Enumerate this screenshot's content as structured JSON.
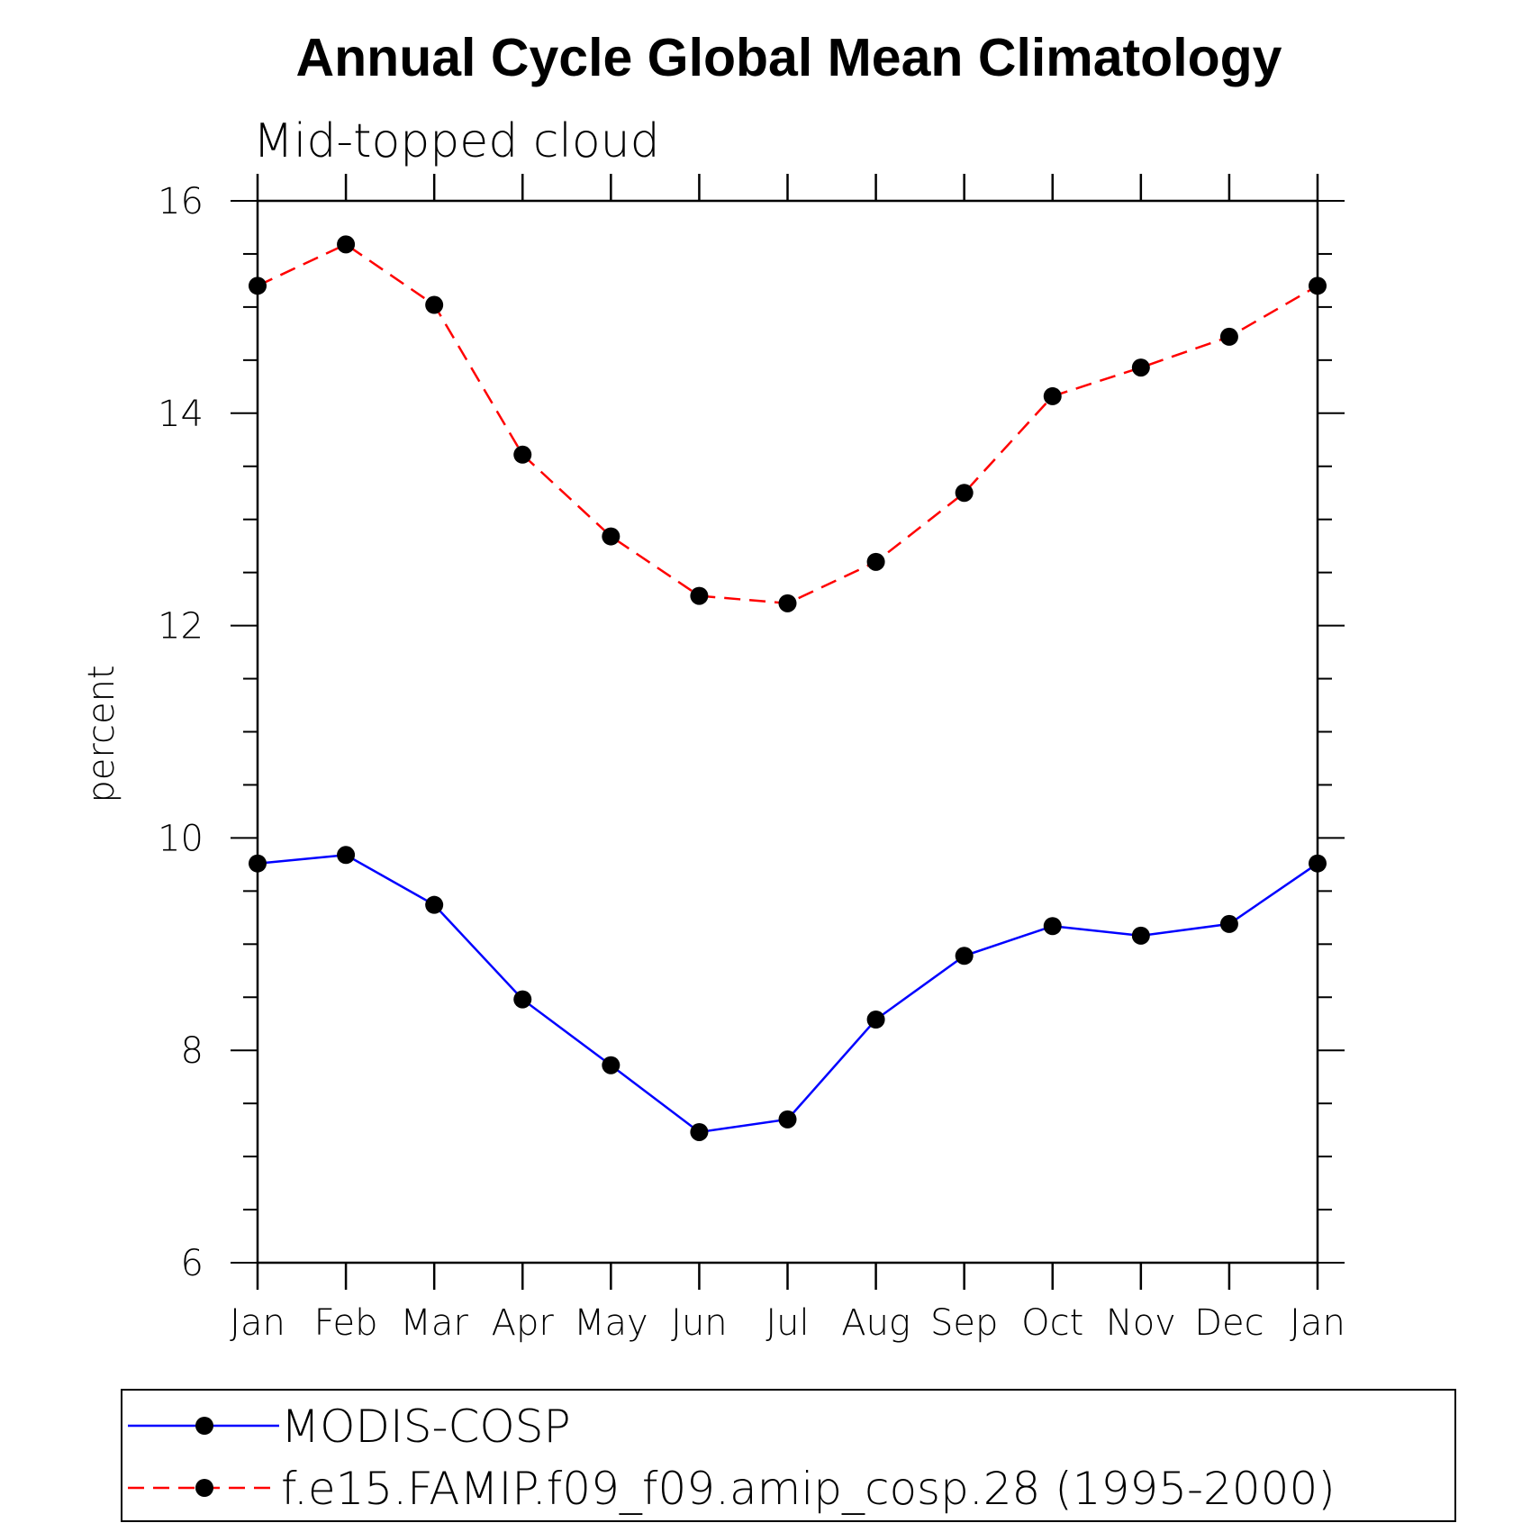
{
  "chart_data": {
    "type": "line",
    "title": "Annual Cycle Global Mean Climatology",
    "subtitle": "Mid-topped cloud",
    "ylabel": "percent",
    "xlabel": "",
    "categories": [
      "Jan",
      "Feb",
      "Mar",
      "Apr",
      "May",
      "Jun",
      "Jul",
      "Aug",
      "Sep",
      "Oct",
      "Nov",
      "Dec",
      "Jan"
    ],
    "ylim": [
      6,
      16
    ],
    "yticks": [
      "6",
      "8",
      "10",
      "12",
      "14",
      "16"
    ],
    "grid": false,
    "legend_position": "bottom",
    "series": [
      {
        "name": "MODIS-COSP",
        "color": "#0000ff",
        "line_style": "solid",
        "marker": "filled-circle",
        "values": [
          9.76,
          9.84,
          9.37,
          8.48,
          7.86,
          7.23,
          7.35,
          8.29,
          8.89,
          9.17,
          9.08,
          9.19,
          9.76
        ]
      },
      {
        "name": "f.e15.FAMIP.f09_f09.amip_cosp.28 (1995-2000)",
        "color": "#ff0000",
        "line_style": "dashed",
        "marker": "filled-circle",
        "values": [
          15.2,
          15.59,
          15.02,
          13.61,
          12.84,
          12.28,
          12.21,
          12.6,
          13.25,
          14.16,
          14.43,
          14.72,
          15.2
        ]
      }
    ]
  }
}
